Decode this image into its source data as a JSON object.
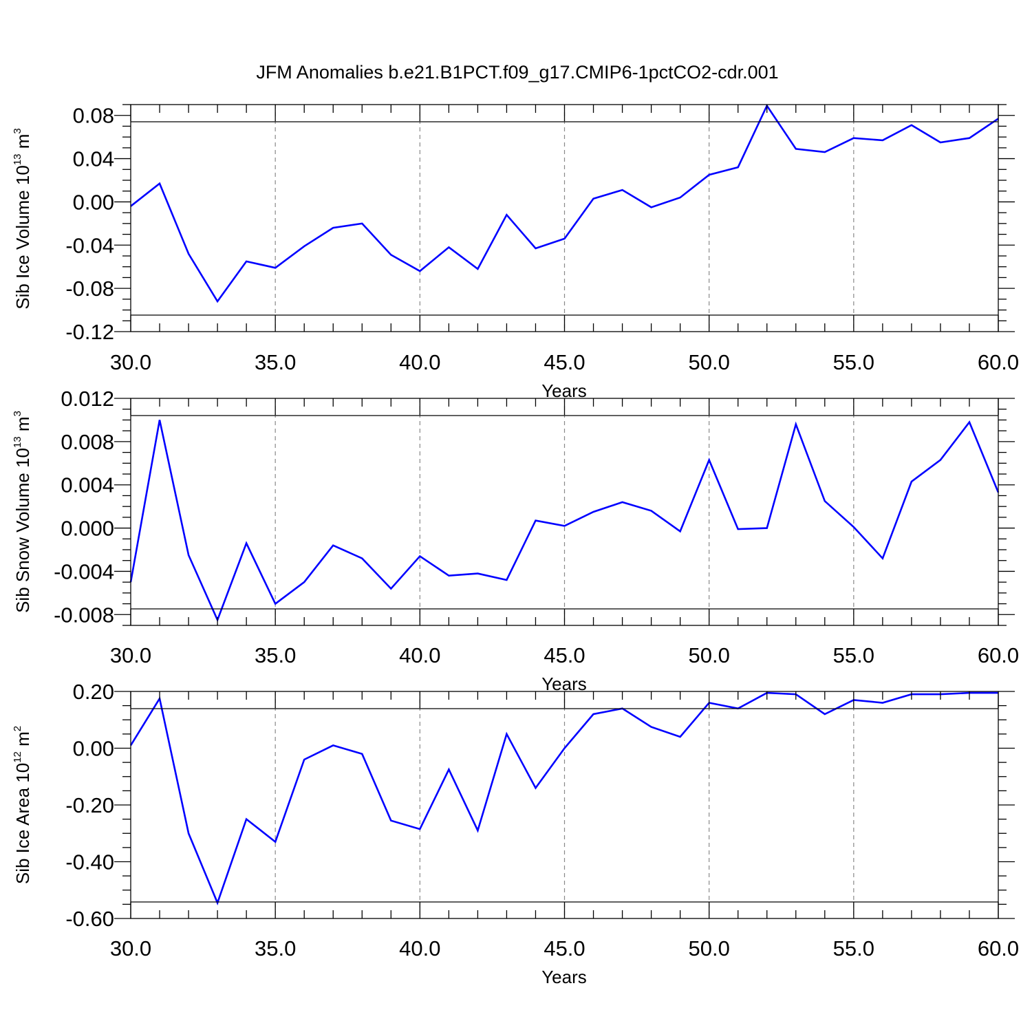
{
  "figure": {
    "title": "JFM Anomalies b.e21.B1PCT.f09_g17.CMIP6-1pctCO2-cdr.001"
  },
  "chart_data": [
    {
      "type": "line",
      "id": "ice-volume",
      "xlabel": "Years",
      "ylabel": {
        "text": "Sib Ice Volume 10",
        "sup": "13",
        "unit": " m",
        "unit_sup": "3"
      },
      "xlim": [
        30,
        60
      ],
      "ylim": [
        -0.12,
        0.09
      ],
      "xticks": [
        "30.0",
        "35.0",
        "40.0",
        "45.0",
        "50.0",
        "55.0",
        "60.0"
      ],
      "yticks": [
        "-0.12",
        "-0.08",
        "-0.04",
        "0.00",
        "0.04",
        "0.08"
      ],
      "line_color": "#0000ff",
      "grid": "dashed vertical at major x ticks",
      "x": [
        30,
        31,
        32,
        33,
        34,
        35,
        36,
        37,
        38,
        39,
        40,
        41,
        42,
        43,
        44,
        45,
        46,
        47,
        48,
        49,
        50,
        51,
        52,
        53,
        54,
        55,
        56,
        57,
        58,
        59,
        60
      ],
      "series": [
        {
          "values": [
            -0.004,
            0.017,
            -0.048,
            -0.092,
            -0.055,
            -0.061,
            -0.041,
            -0.024,
            -0.02,
            -0.049,
            -0.064,
            -0.042,
            -0.062,
            -0.012,
            -0.043,
            -0.034,
            0.003,
            0.011,
            -0.005,
            0.004,
            0.025,
            0.032,
            0.089,
            0.049,
            0.046,
            0.059,
            0.057,
            0.071,
            0.055,
            0.059,
            0.077
          ]
        }
      ]
    },
    {
      "type": "line",
      "id": "snow-volume",
      "xlabel": "Years",
      "ylabel": {
        "text": "Sib Snow Volume 10",
        "sup": "13",
        "unit": " m",
        "unit_sup": "3"
      },
      "xlim": [
        30,
        60
      ],
      "ylim": [
        -0.009,
        0.012
      ],
      "xticks": [
        "30.0",
        "35.0",
        "40.0",
        "45.0",
        "50.0",
        "55.0",
        "60.0"
      ],
      "yticks": [
        "-0.008",
        "-0.004",
        "0.000",
        "0.004",
        "0.008",
        "0.012"
      ],
      "line_color": "#0000ff",
      "grid": "dashed vertical at major x ticks",
      "x": [
        30,
        31,
        32,
        33,
        34,
        35,
        36,
        37,
        38,
        39,
        40,
        41,
        42,
        43,
        44,
        45,
        46,
        47,
        48,
        49,
        50,
        51,
        52,
        53,
        54,
        55,
        56,
        57,
        58,
        59,
        60
      ],
      "series": [
        {
          "values": [
            -0.005,
            0.01,
            -0.0025,
            -0.0085,
            -0.0014,
            -0.007,
            -0.005,
            -0.0016,
            -0.0028,
            -0.0056,
            -0.0026,
            -0.0044,
            -0.0042,
            -0.0048,
            0.0007,
            0.0002,
            0.0015,
            0.0024,
            0.0016,
            -0.0003,
            0.0063,
            -0.0001,
            0.0,
            0.0096,
            0.0025,
            0.0001,
            -0.0028,
            0.0043,
            0.0063,
            0.0098,
            0.0033
          ]
        }
      ]
    },
    {
      "type": "line",
      "id": "ice-area",
      "xlabel": "Years",
      "ylabel": {
        "text": "Sib Ice Area 10",
        "sup": "12",
        "unit": " m",
        "unit_sup": "2"
      },
      "xlim": [
        30,
        60
      ],
      "ylim": [
        -0.6,
        0.2
      ],
      "xticks": [
        "30.0",
        "35.0",
        "40.0",
        "45.0",
        "50.0",
        "55.0",
        "60.0"
      ],
      "yticks": [
        "-0.60",
        "-0.40",
        "-0.20",
        "0.00",
        "0.20"
      ],
      "line_color": "#0000ff",
      "grid": "dashed vertical at major x ticks",
      "x": [
        30,
        31,
        32,
        33,
        34,
        35,
        36,
        37,
        38,
        39,
        40,
        41,
        42,
        43,
        44,
        45,
        46,
        47,
        48,
        49,
        50,
        51,
        52,
        53,
        54,
        55,
        56,
        57,
        58,
        59,
        60
      ],
      "series": [
        {
          "values": [
            0.01,
            0.175,
            -0.3,
            -0.545,
            -0.25,
            -0.33,
            -0.04,
            0.01,
            -0.02,
            -0.255,
            -0.285,
            -0.075,
            -0.29,
            0.05,
            -0.14,
            0.0,
            0.12,
            0.14,
            0.075,
            0.04,
            0.16,
            0.14,
            0.195,
            0.19,
            0.12,
            0.17,
            0.16,
            0.19,
            0.19,
            0.195,
            0.195
          ]
        }
      ]
    }
  ]
}
